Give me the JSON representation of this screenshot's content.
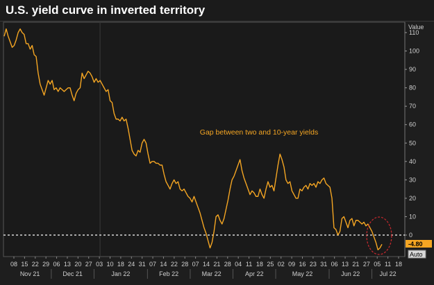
{
  "chart_data": {
    "type": "line",
    "title": "U.S. yield curve in inverted territory",
    "ylabel": "Value",
    "annotation": "Gap between two and 10-year yields",
    "ylim": [
      -10,
      115
    ],
    "yticks": [
      110,
      100,
      90,
      80,
      70,
      60,
      50,
      40,
      30,
      20,
      10,
      0
    ],
    "x_tick_labels": [
      "08",
      "15",
      "22",
      "29",
      "06",
      "13",
      "20",
      "27",
      "03",
      "10",
      "18",
      "24",
      "31",
      "07",
      "14",
      "22",
      "28",
      "07",
      "14",
      "21",
      "28",
      "04",
      "11",
      "18",
      "25",
      "02",
      "09",
      "16",
      "23",
      "31",
      "06",
      "13",
      "21",
      "27",
      "05",
      "11",
      "18"
    ],
    "month_labels": [
      "Nov 21",
      "Dec 21",
      "Jan 22",
      "Feb 22",
      "Mar 22",
      "Apr 22",
      "May 22",
      "Jun 22",
      "Jul 22"
    ],
    "reference_line": 0,
    "last_value_label": "-4.80",
    "scale_button": "Auto",
    "line_color": "#f5a623",
    "series": [
      {
        "values": [
          108,
          112,
          108,
          105,
          102,
          103,
          106,
          110,
          112,
          110,
          109,
          104,
          104,
          101,
          103,
          98,
          97,
          88,
          82,
          79,
          76,
          80,
          84,
          82,
          84,
          79,
          80,
          78,
          80,
          79,
          78,
          79,
          80,
          80,
          76,
          73,
          77,
          79,
          80,
          88,
          85,
          87,
          89,
          88,
          86,
          83,
          85,
          83,
          84,
          82,
          80,
          78,
          79,
          73,
          72,
          66,
          63,
          63,
          62,
          64,
          62,
          63,
          58,
          52,
          46,
          44,
          43,
          46,
          45,
          50,
          52,
          50,
          44,
          39,
          40,
          40,
          39,
          39,
          38,
          38,
          33,
          29,
          27,
          25,
          28,
          30,
          28,
          29,
          25,
          24,
          25,
          23,
          21,
          20,
          18,
          21,
          18,
          15,
          12,
          8,
          4,
          1,
          -3,
          -7,
          -4,
          2,
          10,
          11,
          8,
          6,
          9,
          14,
          19,
          25,
          30,
          32,
          35,
          38,
          41,
          35,
          31,
          28,
          25,
          22,
          24,
          23,
          21,
          21,
          25,
          22,
          20,
          25,
          29,
          26,
          27,
          24,
          31,
          38,
          44,
          41,
          37,
          30,
          28,
          29,
          24,
          22,
          20,
          20,
          25,
          24,
          26,
          27,
          25,
          28,
          27,
          28,
          26,
          29,
          28,
          30,
          31,
          28,
          27,
          26,
          20,
          4,
          3,
          0,
          2,
          9,
          10,
          7,
          4,
          8,
          9,
          5,
          8,
          8,
          7,
          6,
          7,
          5,
          6,
          4,
          2,
          -1,
          -4,
          -8,
          -7,
          -5
        ]
      }
    ]
  }
}
